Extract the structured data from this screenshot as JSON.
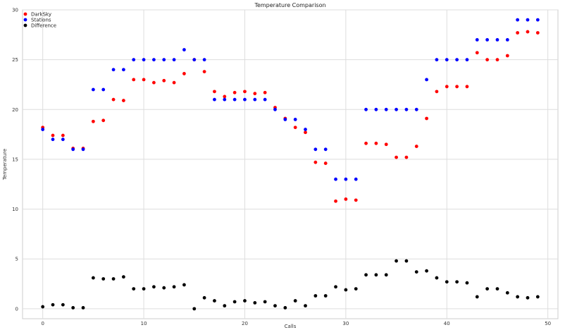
{
  "chart_data": {
    "type": "scatter",
    "title": "Temperature Comparison",
    "xlabel": "Calls",
    "ylabel": "Temperature",
    "xlim": [
      -2,
      51
    ],
    "ylim": [
      -1,
      30
    ],
    "xticks": [
      0,
      10,
      20,
      30,
      40,
      50
    ],
    "yticks": [
      0,
      5,
      10,
      15,
      20,
      25,
      30
    ],
    "grid": true,
    "legend_position": "top-left",
    "series": [
      {
        "name": "DarkSky",
        "color": "#ff0000",
        "x": [
          0,
          1,
          2,
          3,
          4,
          5,
          6,
          7,
          8,
          9,
          10,
          11,
          12,
          13,
          14,
          15,
          16,
          17,
          18,
          19,
          20,
          21,
          22,
          23,
          24,
          25,
          26,
          27,
          28,
          29,
          30,
          31,
          32,
          33,
          34,
          35,
          36,
          37,
          38,
          39,
          40,
          41,
          42,
          43,
          44,
          45,
          46,
          47,
          48,
          49
        ],
        "y": [
          18.2,
          17.4,
          17.4,
          16.1,
          16.1,
          18.8,
          18.9,
          21.0,
          20.9,
          23.0,
          23.0,
          22.7,
          22.9,
          22.7,
          23.6,
          25.0,
          23.8,
          21.8,
          21.3,
          21.7,
          21.8,
          21.6,
          21.7,
          20.2,
          19.1,
          18.2,
          17.7,
          14.7,
          14.6,
          10.8,
          11.0,
          10.9,
          16.6,
          16.6,
          16.5,
          15.2,
          15.2,
          16.3,
          19.1,
          21.8,
          22.3,
          22.3,
          22.3,
          25.7,
          25.0,
          25.0,
          25.4,
          27.7,
          27.8,
          27.7
        ]
      },
      {
        "name": "Stations",
        "color": "#0000ff",
        "x": [
          0,
          1,
          2,
          3,
          4,
          5,
          6,
          7,
          8,
          9,
          10,
          11,
          12,
          13,
          14,
          15,
          16,
          17,
          18,
          19,
          20,
          21,
          22,
          23,
          24,
          25,
          26,
          27,
          28,
          29,
          30,
          31,
          32,
          33,
          34,
          35,
          36,
          37,
          38,
          39,
          40,
          41,
          42,
          43,
          44,
          45,
          46,
          47,
          48,
          49
        ],
        "y": [
          18.0,
          17.0,
          17.0,
          16.0,
          16.0,
          22.0,
          22.0,
          24.0,
          24.0,
          25.0,
          25.0,
          25.0,
          25.0,
          25.0,
          26.0,
          25.0,
          25.0,
          21.0,
          21.0,
          21.0,
          21.0,
          21.0,
          21.0,
          20.0,
          19.0,
          19.0,
          18.0,
          16.0,
          16.0,
          13.0,
          13.0,
          13.0,
          20.0,
          20.0,
          20.0,
          20.0,
          20.0,
          20.0,
          23.0,
          25.0,
          25.0,
          25.0,
          25.0,
          27.0,
          27.0,
          27.0,
          27.0,
          29.0,
          29.0,
          29.0
        ]
      },
      {
        "name": "Difference",
        "color": "#000000",
        "x": [
          0,
          1,
          2,
          3,
          4,
          5,
          6,
          7,
          8,
          9,
          10,
          11,
          12,
          13,
          14,
          15,
          16,
          17,
          18,
          19,
          20,
          21,
          22,
          23,
          24,
          25,
          26,
          27,
          28,
          29,
          30,
          31,
          32,
          33,
          34,
          35,
          36,
          37,
          38,
          39,
          40,
          41,
          42,
          43,
          44,
          45,
          46,
          47,
          48,
          49
        ],
        "y": [
          0.2,
          0.4,
          0.4,
          0.1,
          0.1,
          3.1,
          3.0,
          3.0,
          3.2,
          2.0,
          2.0,
          2.2,
          2.1,
          2.2,
          2.4,
          0.0,
          1.1,
          0.8,
          0.3,
          0.7,
          0.8,
          0.6,
          0.7,
          0.3,
          0.1,
          0.8,
          0.3,
          1.3,
          1.3,
          2.2,
          1.9,
          2.0,
          3.4,
          3.4,
          3.4,
          4.8,
          4.8,
          3.7,
          3.8,
          3.1,
          2.7,
          2.7,
          2.6,
          1.2,
          2.0,
          2.0,
          1.6,
          1.2,
          1.1,
          1.2
        ]
      }
    ]
  }
}
